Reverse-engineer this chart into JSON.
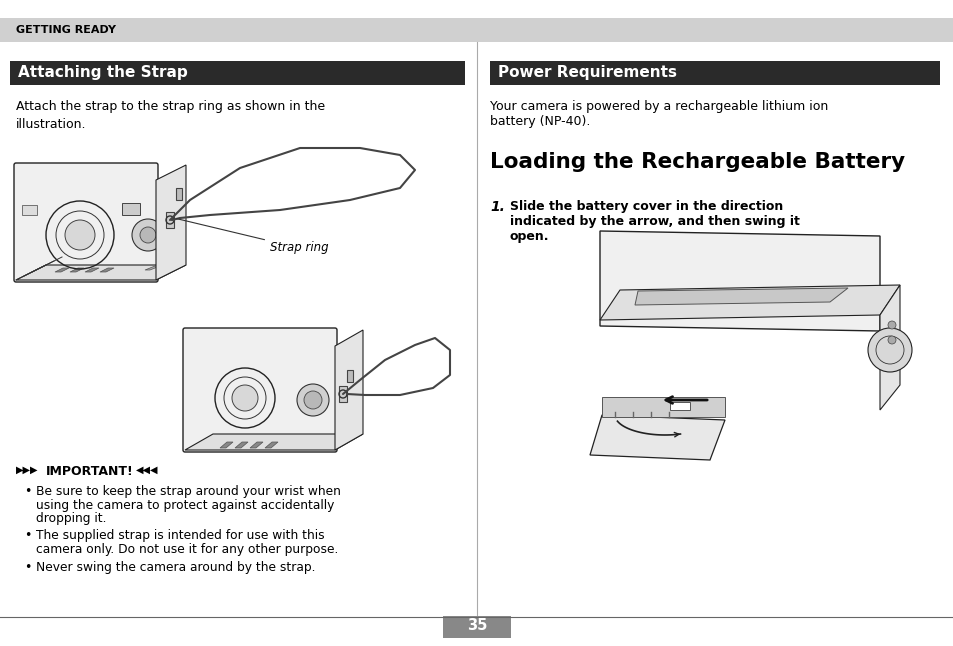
{
  "background_color": "#ffffff",
  "header_bg": "#d0d0d0",
  "header_text": "GETTING READY",
  "left_section_title": "Attaching the Strap",
  "left_title_bg": "#2a2a2a",
  "left_title_color": "#ffffff",
  "left_body_text": "Attach the strap to the strap ring as shown in the\nillustration.",
  "left_important_label": "IMPORTANT!",
  "left_bullet1_line1": "Be sure to keep the strap around your wrist when",
  "left_bullet1_line2": "using the camera to protect against accidentally",
  "left_bullet1_line3": "dropping it.",
  "left_bullet2_line1": "The supplied strap is intended for use with this",
  "left_bullet2_line2": "camera only. Do not use it for any other purpose.",
  "left_bullet3": "Never swing the camera around by the strap.",
  "strap_ring_label": "Strap ring",
  "right_section_title": "Power Requirements",
  "right_title_bg": "#2a2a2a",
  "right_title_color": "#ffffff",
  "right_body_line1": "Your camera is powered by a rechargeable lithium ion",
  "right_body_line2": "battery (NP-40).",
  "right_main_title": "Loading the Rechargeable Battery",
  "right_step1_num": "1.",
  "right_step1_line1": "Slide the battery cover in the direction",
  "right_step1_line2": "indicated by the arrow, and then swing it",
  "right_step1_line3": "open.",
  "page_number": "35",
  "page_num_bg": "#888888",
  "divider_color": "#aaaaaa",
  "bottom_line_color": "#888888"
}
